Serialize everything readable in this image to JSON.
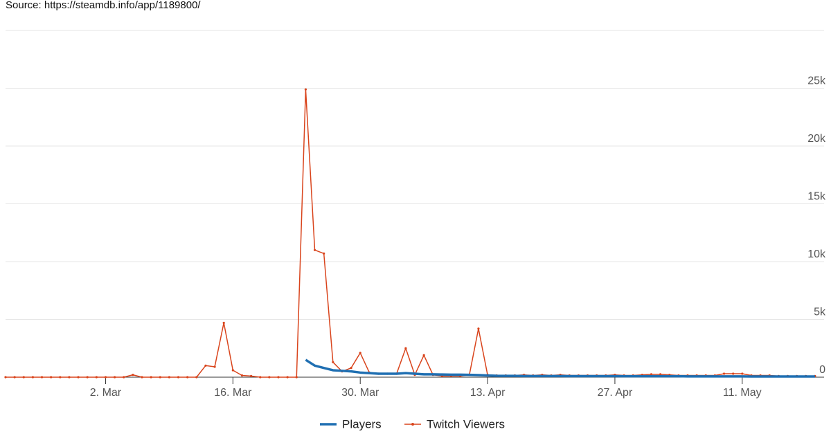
{
  "chart_data": {
    "type": "line",
    "source": "Source: https://steamdb.info/app/1189800/",
    "x": [
      0,
      1,
      2,
      3,
      4,
      5,
      6,
      7,
      8,
      9,
      10,
      11,
      12,
      13,
      14,
      15,
      16,
      17,
      18,
      19,
      20,
      21,
      22,
      23,
      24,
      25,
      26,
      27,
      28,
      29,
      30,
      31,
      32,
      33,
      34,
      35,
      36,
      37,
      38,
      39,
      40,
      41,
      42,
      43,
      44,
      45,
      46,
      47,
      48,
      49,
      50,
      51,
      52,
      53,
      54,
      55,
      56,
      57,
      58,
      59,
      60,
      61,
      62,
      63,
      64,
      65,
      66,
      67,
      68,
      69,
      70,
      71,
      72,
      73,
      74,
      75,
      76,
      77,
      78,
      79,
      80,
      81,
      82,
      83,
      84,
      85,
      86,
      87,
      88,
      89
    ],
    "xlim": [
      0,
      90
    ],
    "xticks": [
      {
        "value": 11,
        "label": "2. Mar"
      },
      {
        "value": 25,
        "label": "16. Mar"
      },
      {
        "value": 39,
        "label": "30. Mar"
      },
      {
        "value": 53,
        "label": "13. Apr"
      },
      {
        "value": 67,
        "label": "27. Apr"
      },
      {
        "value": 81,
        "label": "11. May"
      }
    ],
    "ylim": [
      0,
      30000
    ],
    "yticks": [
      0,
      {
        "value": 5000,
        "label": "5k"
      },
      {
        "value": 10000,
        "label": "10k"
      },
      {
        "value": 15000,
        "label": "15k"
      },
      {
        "value": 20000,
        "label": "20k"
      },
      {
        "value": 25000,
        "label": "25k"
      }
    ],
    "grid": true,
    "legend": "bottom",
    "series": [
      {
        "name": "Players",
        "color": "#1f6fb2",
        "markers": false,
        "values": [
          null,
          null,
          null,
          null,
          null,
          null,
          null,
          null,
          null,
          null,
          null,
          null,
          null,
          null,
          null,
          null,
          null,
          null,
          null,
          null,
          null,
          null,
          null,
          null,
          null,
          null,
          null,
          null,
          null,
          null,
          null,
          null,
          null,
          1500,
          1000,
          800,
          600,
          550,
          500,
          400,
          350,
          300,
          300,
          300,
          350,
          300,
          250,
          250,
          230,
          220,
          220,
          200,
          180,
          150,
          120,
          110,
          110,
          100,
          100,
          100,
          100,
          100,
          90,
          90,
          90,
          90,
          90,
          90,
          80,
          80,
          80,
          80,
          80,
          80,
          80,
          70,
          70,
          70,
          70,
          70,
          70,
          70,
          60,
          60,
          60,
          60,
          60,
          60,
          60,
          60
        ]
      },
      {
        "name": "Twitch Viewers",
        "color": "#d9441c",
        "markers": true,
        "values": [
          0,
          0,
          0,
          0,
          0,
          0,
          0,
          0,
          0,
          0,
          0,
          0,
          0,
          0,
          200,
          0,
          0,
          0,
          0,
          0,
          0,
          0,
          1000,
          900,
          4700,
          600,
          150,
          100,
          0,
          0,
          0,
          0,
          0,
          24900,
          11000,
          10700,
          1300,
          500,
          800,
          2100,
          400,
          300,
          300,
          300,
          2500,
          200,
          1900,
          200,
          100,
          100,
          100,
          200,
          4200,
          200,
          150,
          150,
          150,
          200,
          150,
          200,
          150,
          200,
          150,
          150,
          150,
          150,
          150,
          200,
          150,
          150,
          200,
          250,
          250,
          200,
          150,
          150,
          150,
          150,
          150,
          300,
          300,
          300,
          150,
          150,
          150,
          100,
          100,
          100,
          100,
          100
        ]
      }
    ]
  }
}
